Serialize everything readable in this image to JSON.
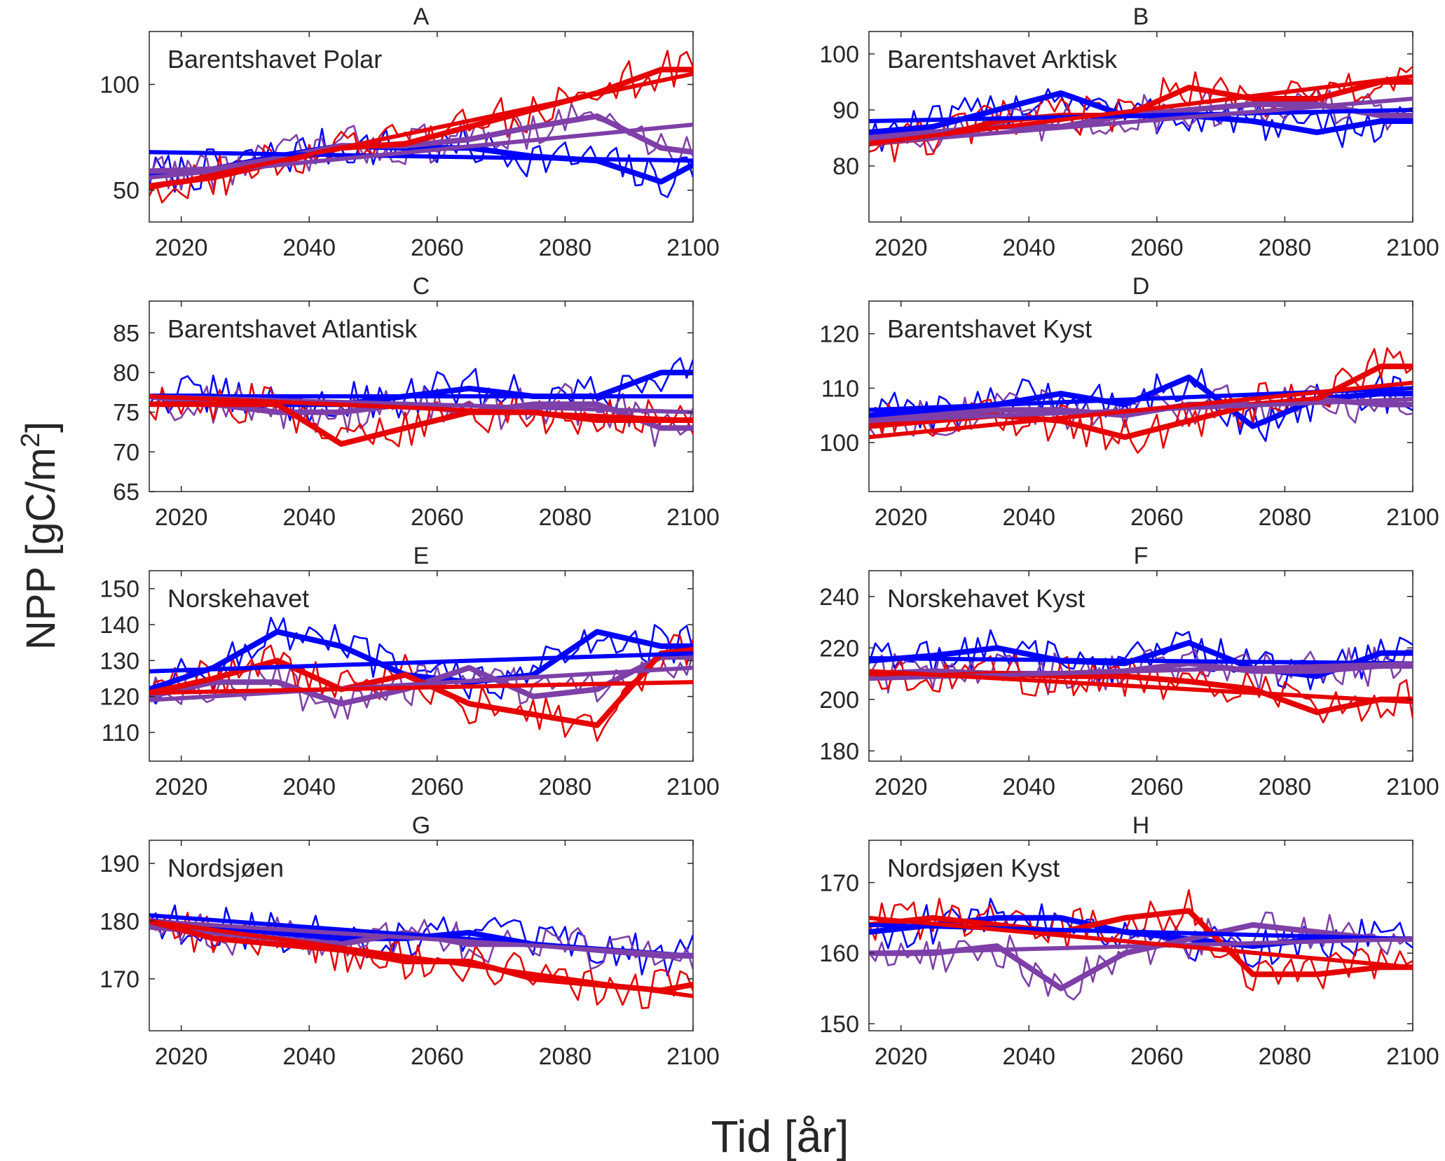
{
  "figure": {
    "ylabel_main": "NPP [gC/m",
    "ylabel_sup": "2",
    "ylabel_close": "]",
    "xlabel": "Tid [år]"
  },
  "colors": {
    "blue": "#0000ff",
    "purple": "#7e3fa8",
    "red": "#e60000"
  },
  "chart_data": [
    {
      "type": "line",
      "letter": "A",
      "name": "Barentshavet Polar",
      "xlim": [
        2015,
        2100
      ],
      "ylim": [
        35,
        125
      ],
      "xticks": [
        "2020",
        "2040",
        "2060",
        "2080",
        "2100"
      ],
      "yticks": [
        "50",
        "100"
      ],
      "x": [
        2015,
        2025,
        2035,
        2045,
        2055,
        2065,
        2075,
        2085,
        2095,
        2100
      ],
      "series": [
        {
          "color": "blue",
          "smooth": [
            57,
            60,
            66,
            71,
            70,
            70,
            66,
            64,
            54,
            62
          ],
          "trend": [
            68,
            64
          ]
        },
        {
          "color": "purple",
          "smooth": [
            59,
            60,
            65,
            71,
            71,
            74,
            80,
            85,
            70,
            68
          ],
          "trend": [
            56,
            81
          ]
        },
        {
          "color": "red",
          "smooth": [
            52,
            56,
            63,
            70,
            72,
            80,
            88,
            96,
            107,
            107
          ],
          "trend": [
            51,
            105
          ]
        }
      ]
    },
    {
      "type": "line",
      "letter": "B",
      "name": "Barentshavet Arktisk",
      "xlim": [
        2015,
        2100
      ],
      "ylim": [
        70,
        104
      ],
      "xticks": [
        "2020",
        "2040",
        "2060",
        "2080",
        "2100"
      ],
      "yticks": [
        "80",
        "90",
        "100"
      ],
      "x": [
        2015,
        2025,
        2035,
        2045,
        2055,
        2065,
        2075,
        2085,
        2095,
        2100
      ],
      "series": [
        {
          "color": "blue",
          "smooth": [
            86,
            87,
            90,
            93,
            89,
            89,
            88,
            86,
            88,
            88
          ],
          "trend": [
            88,
            90
          ]
        },
        {
          "color": "purple",
          "smooth": [
            85,
            86,
            87,
            87,
            89,
            90,
            91,
            91,
            89,
            89
          ],
          "trend": [
            84,
            92
          ]
        },
        {
          "color": "red",
          "smooth": [
            84,
            85,
            88,
            89,
            89,
            94,
            92,
            92,
            95,
            95
          ],
          "trend": [
            84,
            96
          ]
        }
      ]
    },
    {
      "type": "line",
      "letter": "C",
      "name": "Barentshavet Atlantisk",
      "xlim": [
        2015,
        2100
      ],
      "ylim": [
        65,
        89
      ],
      "xticks": [
        "2020",
        "2040",
        "2060",
        "2080",
        "2100"
      ],
      "yticks": [
        "65",
        "70",
        "75",
        "80",
        "85"
      ],
      "x": [
        2015,
        2025,
        2035,
        2045,
        2055,
        2065,
        2075,
        2085,
        2095,
        2100
      ],
      "series": [
        {
          "color": "blue",
          "smooth": [
            77,
            77,
            76,
            76,
            77,
            78,
            77,
            77,
            80,
            80
          ],
          "trend": [
            77,
            77
          ]
        },
        {
          "color": "purple",
          "smooth": [
            77,
            76,
            75,
            75,
            76,
            75,
            76,
            76,
            73,
            73
          ],
          "trend": [
            77,
            75
          ]
        },
        {
          "color": "red",
          "smooth": [
            76,
            76,
            76,
            71,
            73,
            75,
            75,
            74,
            74,
            74
          ],
          "trend": [
            77,
            74
          ]
        }
      ]
    },
    {
      "type": "line",
      "letter": "D",
      "name": "Barentshavet Kyst",
      "xlim": [
        2015,
        2100
      ],
      "ylim": [
        91,
        126
      ],
      "xticks": [
        "2020",
        "2040",
        "2060",
        "2080",
        "2100"
      ],
      "yticks": [
        "100",
        "110",
        "120"
      ],
      "x": [
        2015,
        2025,
        2035,
        2045,
        2055,
        2065,
        2075,
        2085,
        2095,
        2100
      ],
      "series": [
        {
          "color": "blue",
          "smooth": [
            105,
            106,
            107,
            109,
            107,
            112,
            103,
            108,
            109,
            109
          ],
          "trend": [
            106,
            110
          ]
        },
        {
          "color": "purple",
          "smooth": [
            104,
            105,
            106,
            106,
            105,
            107,
            107,
            108,
            107,
            107
          ],
          "trend": [
            104,
            108
          ]
        },
        {
          "color": "red",
          "smooth": [
            103,
            104,
            105,
            104,
            101,
            104,
            107,
            108,
            114,
            114
          ],
          "trend": [
            101,
            111
          ]
        }
      ]
    },
    {
      "type": "line",
      "letter": "E",
      "name": "Norskehavet",
      "xlim": [
        2015,
        2100
      ],
      "ylim": [
        102,
        155
      ],
      "xticks": [
        "2020",
        "2040",
        "2060",
        "2080",
        "2100"
      ],
      "yticks": [
        "110",
        "120",
        "130",
        "140",
        "150"
      ],
      "x": [
        2015,
        2025,
        2035,
        2045,
        2055,
        2065,
        2075,
        2085,
        2095,
        2100
      ],
      "series": [
        {
          "color": "blue",
          "smooth": [
            122,
            128,
            138,
            134,
            126,
            124,
            126,
            138,
            134,
            134
          ],
          "trend": [
            127,
            132
          ]
        },
        {
          "color": "purple",
          "smooth": [
            120,
            124,
            124,
            118,
            122,
            128,
            120,
            122,
            131,
            131
          ],
          "trend": [
            119,
            128
          ]
        },
        {
          "color": "red",
          "smooth": [
            121,
            125,
            130,
            122,
            126,
            118,
            115,
            112,
            132,
            133
          ],
          "trend": [
            121,
            124
          ]
        }
      ]
    },
    {
      "type": "line",
      "letter": "F",
      "name": "Norskehavet Kyst",
      "xlim": [
        2015,
        2100
      ],
      "ylim": [
        176,
        250
      ],
      "xticks": [
        "2020",
        "2040",
        "2060",
        "2080",
        "2100"
      ],
      "yticks": [
        "180",
        "200",
        "220",
        "240"
      ],
      "x": [
        2015,
        2025,
        2035,
        2045,
        2055,
        2065,
        2075,
        2085,
        2095,
        2100
      ],
      "series": [
        {
          "color": "blue",
          "smooth": [
            215,
            217,
            220,
            215,
            214,
            222,
            212,
            209,
            218,
            218
          ],
          "trend": [
            216,
            214
          ]
        },
        {
          "color": "purple",
          "smooth": [
            210,
            211,
            210,
            210,
            211,
            214,
            211,
            211,
            213,
            213
          ],
          "trend": [
            208,
            214
          ]
        },
        {
          "color": "red",
          "smooth": [
            210,
            209,
            210,
            209,
            209,
            207,
            204,
            195,
            200,
            200
          ],
          "trend": [
            211,
            199
          ]
        }
      ]
    },
    {
      "type": "line",
      "letter": "G",
      "name": "Nordsjøen",
      "xlim": [
        2015,
        2100
      ],
      "ylim": [
        161,
        194
      ],
      "xticks": [
        "2020",
        "2040",
        "2060",
        "2080",
        "2100"
      ],
      "yticks": [
        "170",
        "180",
        "190"
      ],
      "x": [
        2015,
        2025,
        2035,
        2045,
        2055,
        2065,
        2075,
        2085,
        2095,
        2100
      ],
      "series": [
        {
          "color": "blue",
          "smooth": [
            180,
            179,
            178,
            177,
            177,
            178,
            176,
            175,
            174,
            174
          ],
          "trend": [
            181,
            174
          ]
        },
        {
          "color": "purple",
          "smooth": [
            179,
            178,
            177,
            176,
            178,
            176,
            176,
            175,
            174,
            174
          ],
          "trend": [
            180,
            174
          ]
        },
        {
          "color": "red",
          "smooth": [
            180,
            177,
            176,
            175,
            173,
            173,
            170,
            169,
            168,
            169
          ],
          "trend": [
            180,
            167
          ]
        }
      ]
    },
    {
      "type": "line",
      "letter": "H",
      "name": "Nordsjøen Kyst",
      "xlim": [
        2015,
        2100
      ],
      "ylim": [
        149,
        176
      ],
      "xticks": [
        "2020",
        "2040",
        "2060",
        "2080",
        "2100"
      ],
      "yticks": [
        "150",
        "160",
        "170"
      ],
      "x": [
        2015,
        2025,
        2035,
        2045,
        2055,
        2065,
        2075,
        2085,
        2095,
        2100
      ],
      "series": [
        {
          "color": "blue",
          "smooth": [
            163,
            164,
            165,
            165,
            163,
            162,
            161,
            162,
            162,
            162
          ],
          "trend": [
            164,
            162
          ]
        },
        {
          "color": "purple",
          "smooth": [
            160,
            160,
            161,
            155,
            160,
            162,
            164,
            163,
            162,
            162
          ],
          "trend": [
            160,
            162
          ]
        },
        {
          "color": "red",
          "smooth": [
            164,
            165,
            164,
            163,
            165,
            166,
            157,
            157,
            158,
            158
          ],
          "trend": [
            165,
            158
          ]
        }
      ]
    }
  ]
}
